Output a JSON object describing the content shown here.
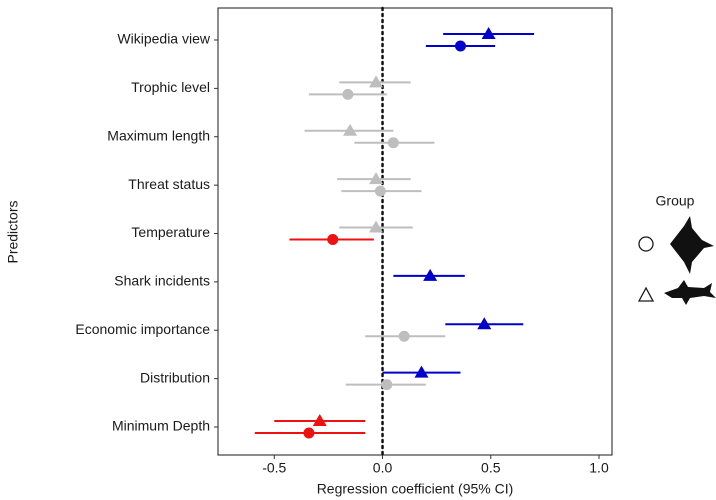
{
  "chart_data": {
    "type": "forest",
    "x_label": "Regression coefficient (95% CI)",
    "y_label": "Predictors",
    "legend_title": "Group",
    "categories": [
      "Wikipedia view",
      "Trophic level",
      "Maximum length",
      "Threat status",
      "Temperature",
      "Shark incidents",
      "Economic importance",
      "Distribution",
      "Minimum Depth"
    ],
    "xlim": [
      -0.76,
      1.06
    ],
    "xticks": [
      -0.5,
      {
        "value": 0,
        "label": "0.0"
      },
      0.5,
      {
        "value": 1,
        "label": "1.0"
      }
    ],
    "series": [
      {
        "marker": "triangle",
        "values": [
          0.49,
          -0.03,
          -0.15,
          -0.03,
          -0.03,
          0.22,
          0.47,
          0.18,
          -0.29
        ],
        "lower": [
          0.28,
          -0.2,
          -0.36,
          -0.21,
          -0.2,
          0.05,
          0.29,
          0.0,
          -0.5
        ],
        "upper": [
          0.7,
          0.13,
          0.05,
          0.13,
          0.14,
          0.38,
          0.65,
          0.36,
          -0.08
        ],
        "colors": [
          "#0000cc",
          "#bebebe",
          "#bebebe",
          "#bebebe",
          "#bebebe",
          "#0000cc",
          "#0000cc",
          "#0000cc",
          "#ee1111"
        ]
      },
      {
        "marker": "circle",
        "values": [
          0.36,
          -0.16,
          0.05,
          -0.01,
          -0.23,
          null,
          0.1,
          0.02,
          -0.34
        ],
        "lower": [
          0.2,
          -0.34,
          -0.13,
          -0.19,
          -0.43,
          null,
          -0.08,
          -0.17,
          -0.59
        ],
        "upper": [
          0.52,
          0.02,
          0.24,
          0.18,
          -0.04,
          null,
          0.29,
          0.2,
          -0.08
        ],
        "colors": [
          "#0000cc",
          "#bebebe",
          "#bebebe",
          "#bebebe",
          "#ee1111",
          null,
          "#bebebe",
          "#bebebe",
          "#ee1111"
        ]
      }
    ]
  }
}
